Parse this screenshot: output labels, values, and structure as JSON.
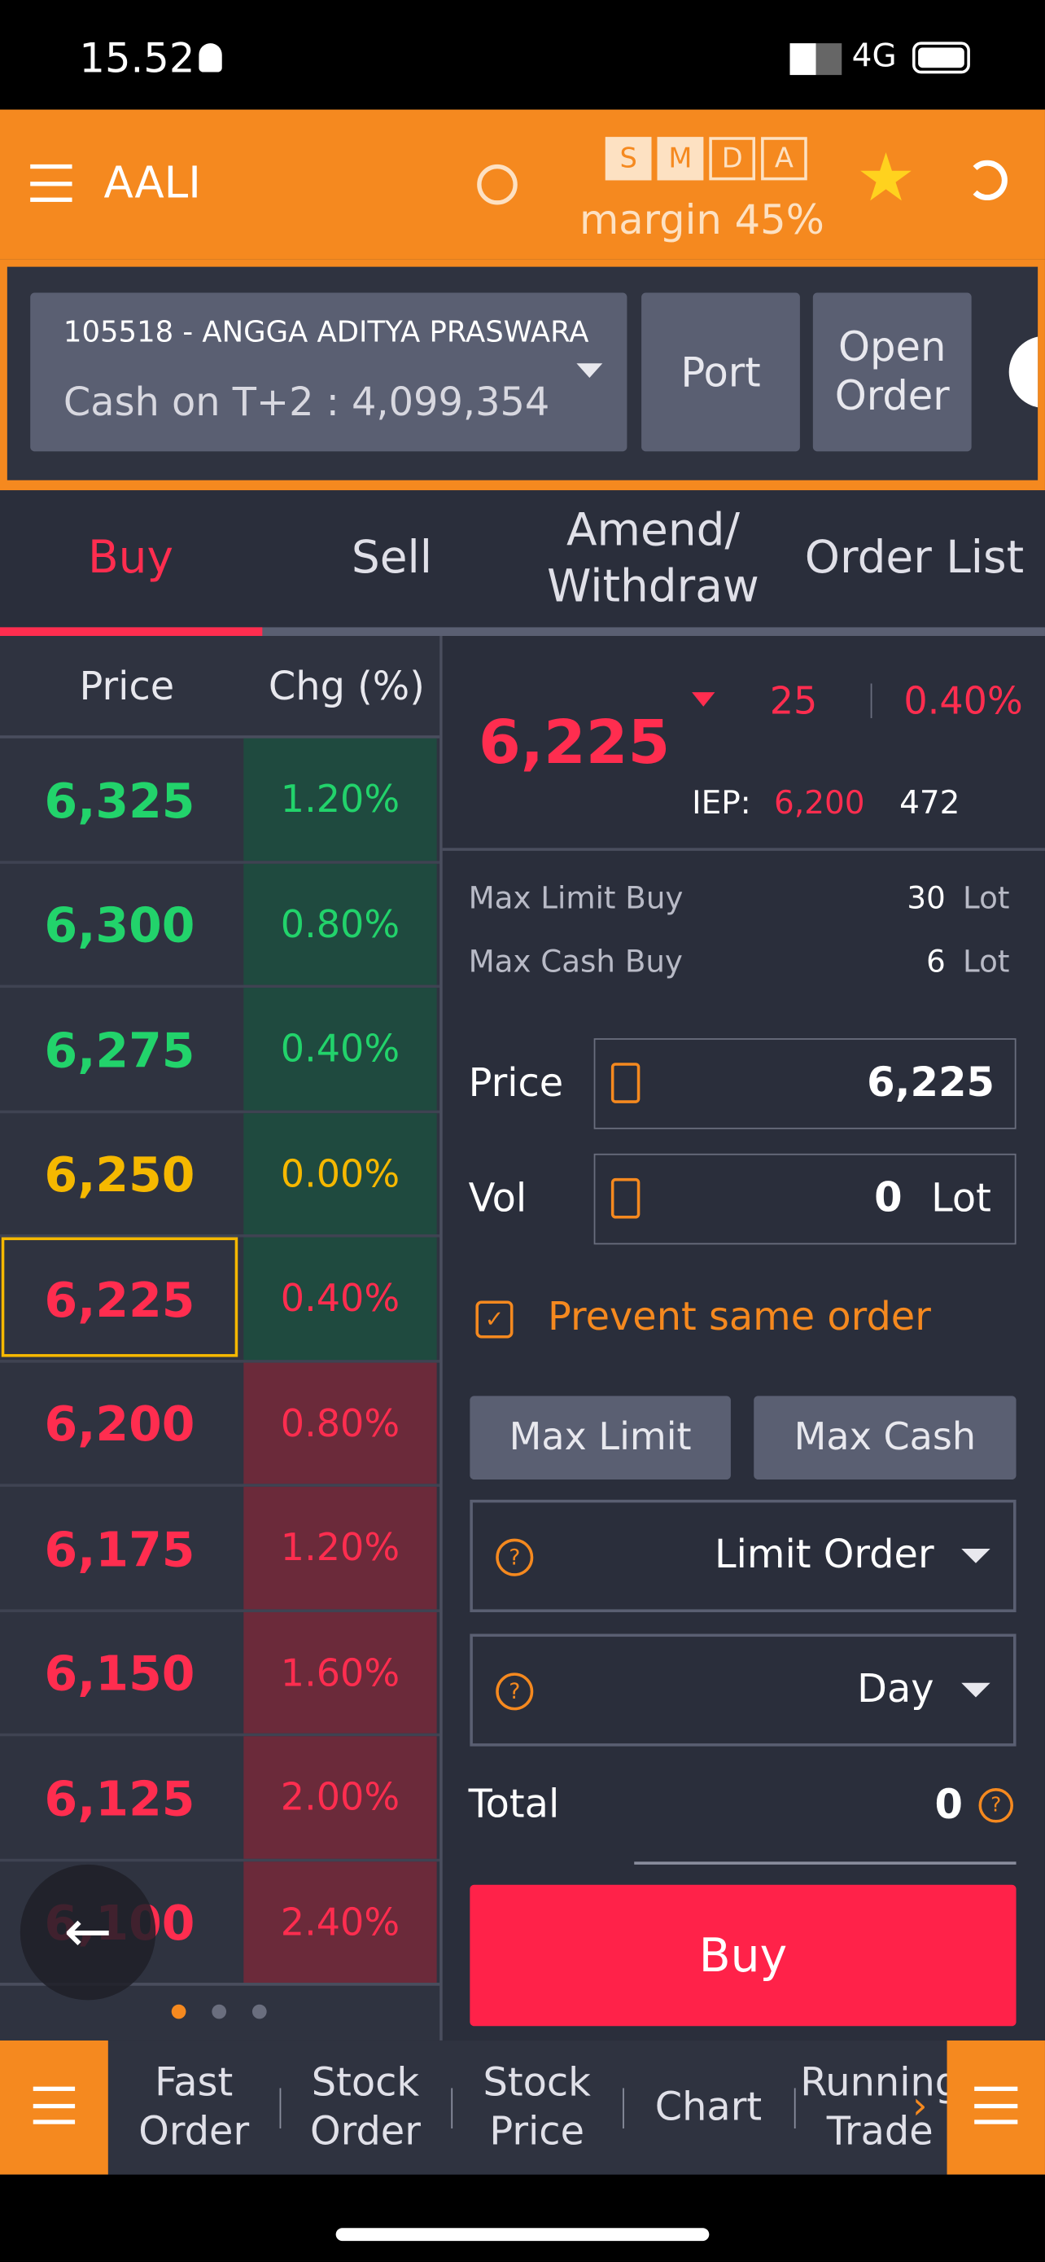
{
  "status_bar": {
    "time": "15.52",
    "network": "4G"
  },
  "header": {
    "symbol": "AALI",
    "badges": [
      "S",
      "M",
      "D",
      "A"
    ],
    "margin": "margin 45%"
  },
  "account": {
    "name": "105518 - ANGGA ADITYA PRASWARA",
    "cash": "Cash on T+2 : 4,099,354",
    "buttons": [
      "Port",
      "Open Order"
    ]
  },
  "tabs": [
    "Buy",
    "Sell",
    "Amend/ Withdraw",
    "Order List"
  ],
  "orderbook": {
    "headers": [
      "Price",
      "Chg (%)"
    ],
    "rows": [
      [
        "6,325",
        "1.20%"
      ],
      [
        "6,300",
        "0.80%"
      ],
      [
        "6,275",
        "0.40%"
      ],
      [
        "6,250",
        "0.00%"
      ],
      [
        "6,225",
        "0.40%"
      ],
      [
        "6,200",
        "0.80%"
      ],
      [
        "6,175",
        "1.20%"
      ],
      [
        "6,150",
        "1.60%"
      ],
      [
        "6,125",
        "2.00%"
      ],
      [
        "6,100",
        "2.40%"
      ]
    ]
  },
  "quote": {
    "last": "6,225",
    "change": "25",
    "change_pct": "0.40%",
    "iep_label": "IEP:",
    "iep": "6,200",
    "iep_vol": "472"
  },
  "limits": [
    [
      "Max Limit Buy",
      "30",
      "Lot"
    ],
    [
      "Max Cash Buy",
      "6",
      "Lot"
    ]
  ],
  "form": {
    "price_label": "Price",
    "price": "6,225",
    "vol_label": "Vol",
    "vol": "0",
    "vol_unit": "Lot",
    "prevent": "Prevent same order",
    "max_buttons": [
      "Max Limit",
      "Max Cash"
    ],
    "order_type": "Limit Order",
    "validity": "Day",
    "total_label": "Total",
    "total": "0",
    "submit": "Buy"
  },
  "bottom_nav": [
    "Fast Order",
    "Stock Order",
    "Stock Price",
    "Chart",
    "Running Trade"
  ]
}
